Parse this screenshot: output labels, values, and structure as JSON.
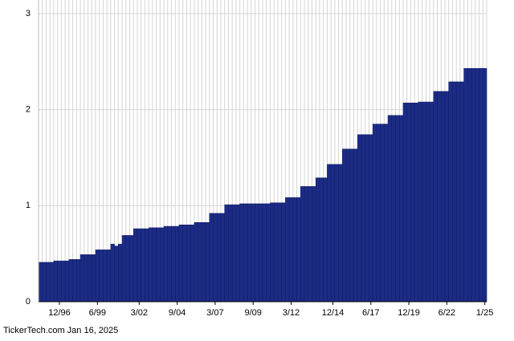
{
  "chart_data": {
    "type": "bar",
    "footer": "TickerTech.com  Jan 16, 2025",
    "categories": [
      null,
      null,
      null,
      null,
      null,
      "12/96",
      null,
      null,
      null,
      null,
      null,
      null,
      null,
      null,
      null,
      "6/99",
      null,
      null,
      null,
      null,
      null,
      null,
      null,
      null,
      null,
      null,
      "3/02",
      null,
      null,
      null,
      null,
      null,
      null,
      null,
      null,
      null,
      "9/04",
      null,
      null,
      null,
      null,
      null,
      null,
      null,
      null,
      null,
      "3/07",
      null,
      null,
      null,
      null,
      null,
      null,
      null,
      null,
      null,
      "9/09",
      null,
      null,
      null,
      null,
      null,
      null,
      null,
      null,
      null,
      "3/12",
      null,
      null,
      null,
      null,
      null,
      null,
      null,
      null,
      null,
      null,
      "12/14",
      null,
      null,
      null,
      null,
      null,
      null,
      null,
      null,
      null,
      "6/17",
      null,
      null,
      null,
      null,
      null,
      null,
      null,
      null,
      null,
      "12/19",
      null,
      null,
      null,
      null,
      null,
      null,
      null,
      null,
      null,
      "6/22",
      null,
      null,
      null,
      null,
      null,
      null,
      null,
      null,
      null,
      "1/25"
    ],
    "values": [
      0.41,
      0.41,
      0.41,
      0.41,
      0.425,
      0.425,
      0.425,
      0.425,
      0.44,
      0.44,
      0.44,
      0.49,
      0.49,
      0.49,
      0.49,
      0.54,
      0.54,
      0.54,
      0.54,
      0.6,
      0.58,
      0.6,
      0.69,
      0.69,
      0.69,
      0.76,
      0.76,
      0.76,
      0.76,
      0.77,
      0.77,
      0.77,
      0.77,
      0.785,
      0.785,
      0.785,
      0.785,
      0.8,
      0.8,
      0.8,
      0.8,
      0.825,
      0.825,
      0.825,
      0.825,
      0.92,
      0.92,
      0.92,
      0.92,
      1.01,
      1.01,
      1.01,
      1.01,
      1.02,
      1.02,
      1.02,
      1.02,
      1.02,
      1.02,
      1.02,
      1.02,
      1.03,
      1.03,
      1.03,
      1.03,
      1.085,
      1.085,
      1.085,
      1.085,
      1.2,
      1.2,
      1.2,
      1.2,
      1.29,
      1.29,
      1.29,
      1.43,
      1.43,
      1.43,
      1.43,
      1.59,
      1.59,
      1.59,
      1.59,
      1.74,
      1.74,
      1.74,
      1.74,
      1.85,
      1.85,
      1.85,
      1.85,
      1.94,
      1.94,
      1.94,
      1.94,
      2.07,
      2.07,
      2.07,
      2.07,
      2.08,
      2.08,
      2.08,
      2.08,
      2.19,
      2.19,
      2.19,
      2.19,
      2.29,
      2.29,
      2.29,
      2.29,
      2.43,
      2.43,
      2.43,
      2.43,
      2.43,
      2.43
    ],
    "color": "#1c2c86",
    "ylim": [
      0,
      3
    ],
    "yticks": [
      0,
      1,
      2,
      3
    ],
    "grid": true
  }
}
